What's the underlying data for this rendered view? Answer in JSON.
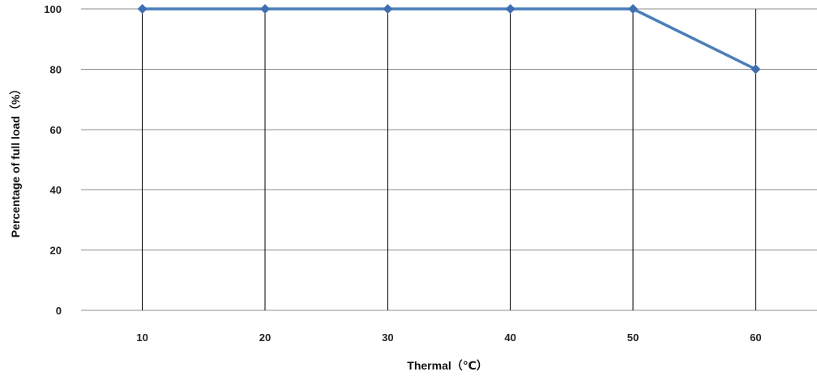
{
  "chart_data": {
    "type": "line",
    "title": "",
    "xlabel": "Thermal（℃）",
    "ylabel": "Percentage of full load（%）",
    "x": [
      10,
      20,
      30,
      40,
      50,
      60
    ],
    "series": [
      {
        "values": [
          100,
          100,
          100,
          100,
          100,
          80
        ]
      }
    ],
    "ylim": [
      0,
      100
    ],
    "yticks": [
      0,
      20,
      40,
      60,
      80,
      100
    ],
    "grid": true,
    "legend": "none",
    "colors": {
      "line": "#4a7ebb",
      "marker": "#3f6fb0",
      "hgrid": "#8c8c8c",
      "vgrid": "#000000"
    }
  }
}
